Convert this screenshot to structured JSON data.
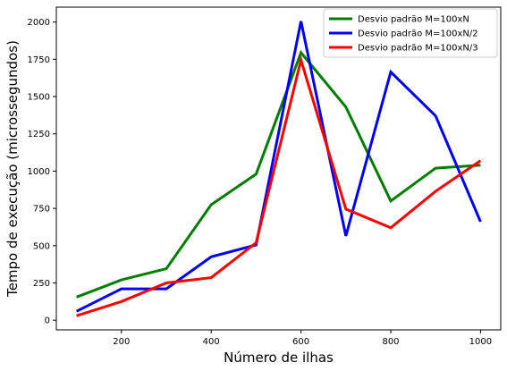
{
  "chart_data": {
    "type": "line",
    "xlabel": "Número de ilhas",
    "ylabel": "Tempo de execução (microssegundos)",
    "x": [
      100,
      200,
      300,
      400,
      500,
      600,
      700,
      800,
      900,
      1000
    ],
    "xlim": [
      55,
      1045
    ],
    "ylim": [
      -65,
      2100
    ],
    "xticks": [
      200,
      400,
      600,
      800,
      1000
    ],
    "yticks": [
      0,
      250,
      500,
      750,
      1000,
      1250,
      1500,
      1750,
      2000
    ],
    "grid": false,
    "legend_position": "top-right",
    "series": [
      {
        "name": "Desvio padrão M=100xN",
        "color": "#008000",
        "values": [
          155,
          270,
          345,
          775,
          980,
          1795,
          1430,
          800,
          1020,
          1040
        ]
      },
      {
        "name": "Desvio padrão M=100xN/2",
        "color": "#0000ff",
        "values": [
          60,
          210,
          210,
          425,
          505,
          2005,
          565,
          1665,
          1370,
          660
        ]
      },
      {
        "name": "Desvio padrão M=100xN/3",
        "color": "#ff0000",
        "values": [
          30,
          125,
          250,
          285,
          520,
          1745,
          745,
          620,
          865,
          1070
        ]
      }
    ]
  }
}
